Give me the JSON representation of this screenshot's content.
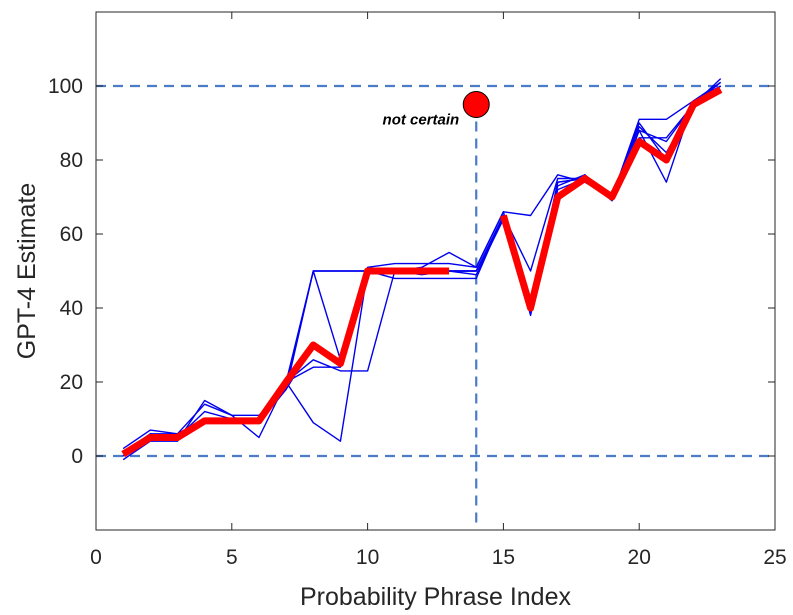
{
  "chart_data": {
    "type": "line",
    "title": "",
    "xlabel": "Probability Phrase Index",
    "ylabel": "GPT-4 Estimate",
    "xlim": [
      0,
      25
    ],
    "ylim": [
      -20,
      120
    ],
    "xticks": [
      0,
      5,
      10,
      15,
      20,
      25
    ],
    "yticks": [
      0,
      20,
      40,
      60,
      80,
      100
    ],
    "grid": false,
    "box": true,
    "colors": {
      "runs": "#0000ee",
      "mean": "#ff0000",
      "ref": "#4a7cc7",
      "axis": "#262626"
    },
    "runs": [
      {
        "x": [
          1,
          2,
          3,
          4,
          5,
          6,
          7,
          8,
          9,
          10,
          11,
          12,
          13,
          14,
          15,
          16,
          17,
          18,
          19,
          20,
          21,
          22,
          23
        ],
        "y": [
          1,
          6,
          6,
          10,
          10,
          10,
          20,
          50,
          50,
          50,
          50,
          50,
          50,
          50,
          65,
          50,
          75,
          75,
          70,
          90,
          80,
          95,
          100
        ]
      },
      {
        "x": [
          1,
          2,
          3,
          4,
          5,
          6,
          7,
          8,
          9,
          10,
          11,
          12,
          13,
          14,
          15,
          16,
          17,
          18,
          19,
          20,
          21,
          22,
          23
        ],
        "y": [
          0,
          5,
          5,
          9,
          9,
          9,
          18,
          30,
          25,
          50,
          50,
          50,
          50,
          50,
          64,
          40,
          72,
          75,
          70,
          85,
          80,
          95,
          99
        ]
      },
      {
        "x": [
          1,
          2,
          3,
          4,
          5,
          6,
          7,
          8,
          9,
          10,
          11,
          12,
          13,
          14,
          15,
          16,
          17,
          18,
          19,
          20,
          21,
          22,
          23
        ],
        "y": [
          -1,
          4,
          4,
          15,
          11,
          5,
          20,
          26,
          23,
          23,
          50,
          51,
          55,
          51,
          66,
          38,
          70,
          76,
          69,
          88,
          74,
          96,
          100
        ]
      },
      {
        "x": [
          1,
          2,
          3,
          4,
          5,
          6,
          7,
          8,
          9,
          10,
          11,
          12,
          13,
          14,
          15,
          16,
          17,
          18,
          19,
          20,
          21,
          22,
          23
        ],
        "y": [
          0,
          5,
          5,
          9,
          9,
          9,
          20,
          24,
          24,
          50,
          50,
          50,
          50,
          50,
          64,
          39,
          73,
          76,
          70,
          89,
          82,
          95,
          100
        ]
      },
      {
        "x": [
          1,
          2,
          3,
          4,
          5,
          6,
          7,
          8,
          9,
          10,
          11,
          12,
          13,
          14,
          15,
          16,
          17,
          18,
          19,
          20,
          21,
          22,
          23
        ],
        "y": [
          2,
          7,
          6,
          14,
          11,
          11,
          18,
          50,
          26,
          51,
          52,
          52,
          52,
          51,
          66,
          65,
          76,
          74,
          70,
          91,
          91,
          96,
          101
        ]
      },
      {
        "x": [
          1,
          2,
          3,
          4,
          5,
          6,
          7,
          8,
          9,
          10,
          11,
          12,
          13,
          14,
          15,
          16,
          17,
          18,
          19,
          20,
          21,
          22,
          23
        ],
        "y": [
          0,
          5,
          5,
          10,
          10,
          9,
          20,
          9,
          4,
          50,
          50,
          49,
          50,
          49,
          64,
          39,
          74,
          75,
          69,
          88,
          85,
          95,
          101
        ]
      },
      {
        "x": [
          1,
          2,
          3,
          4,
          5,
          6,
          7,
          8,
          9,
          10,
          11,
          12,
          13,
          14,
          15,
          16,
          17,
          18,
          19,
          20,
          21,
          22,
          23
        ],
        "y": [
          0,
          6,
          5,
          12,
          10,
          10,
          19,
          50,
          50,
          50,
          48,
          48,
          48,
          48,
          65,
          40,
          74,
          75,
          70,
          86,
          86,
          95,
          102
        ]
      }
    ],
    "mean_series": {
      "x": [
        1,
        2,
        3,
        4,
        5,
        6,
        7,
        8,
        9,
        10,
        11,
        12,
        13,
        14,
        15,
        16,
        17,
        18,
        19,
        20,
        21,
        22,
        23
      ],
      "y": [
        0.5,
        5,
        5,
        9.5,
        9.5,
        9.5,
        20,
        30,
        25,
        50,
        50,
        50,
        50,
        null,
        65,
        40,
        70,
        75,
        70,
        85,
        80,
        95,
        99
      ]
    },
    "reference_lines": {
      "horizontal": [
        0,
        100
      ],
      "vertical": [
        14
      ]
    },
    "highlight_point": {
      "x": 14,
      "y": 95,
      "label": "not certain"
    }
  }
}
